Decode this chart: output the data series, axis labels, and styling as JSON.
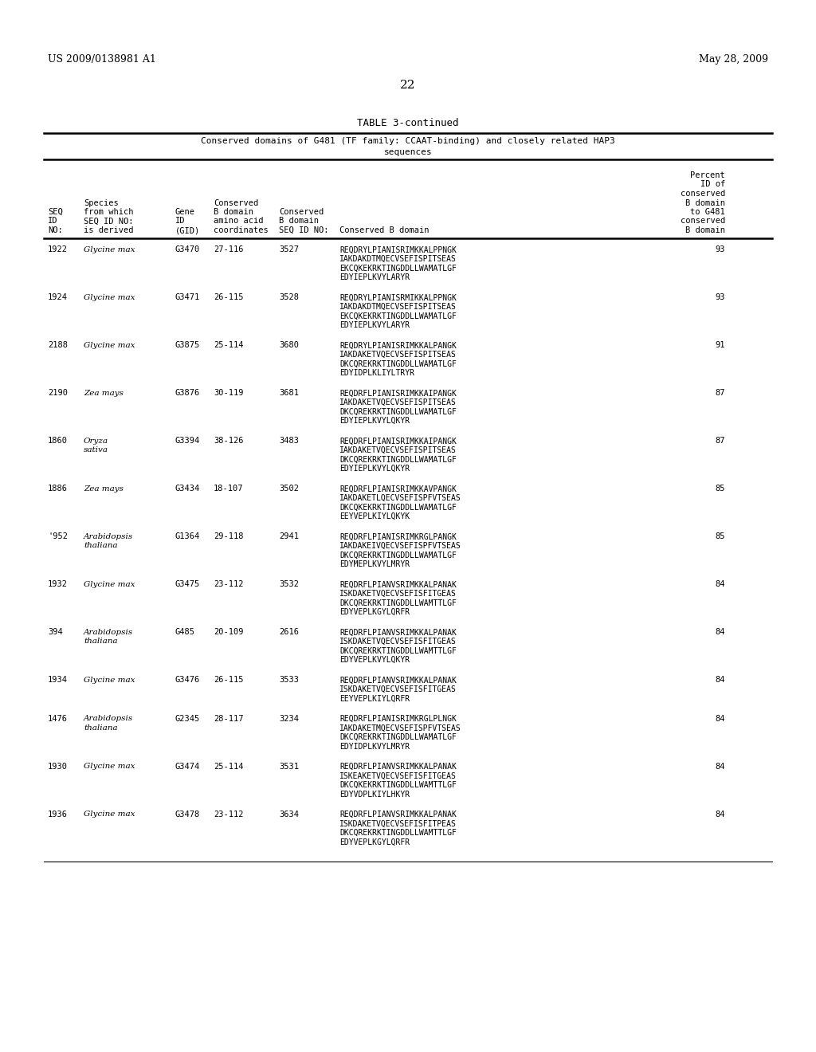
{
  "page_header_left": "US 2009/0138981 A1",
  "page_header_right": "May 28, 2009",
  "page_number": "22",
  "table_title": "TABLE 3-continued",
  "table_caption_line1": "Conserved domains of G481 (TF family: CCAAT-binding) and closely related HAP3",
  "table_caption_line2": "sequences",
  "rows": [
    {
      "seq_id": "1922",
      "species": "Glycine max",
      "gene_id": "G3470",
      "coords": "27-116",
      "conserved_seq_id": "3527",
      "b_domain_lines": [
        "REQDRYLPIANISRIMKKALPPNGK",
        "IAKDAKDTMQECVSEFISPITSEAS",
        "EKCQKEKRKTINGDDLLWAMATLGF",
        "EDYIEPLKVYLARYR"
      ],
      "percent_id": "93"
    },
    {
      "seq_id": "1924",
      "species": "Glycine max",
      "gene_id": "G3471",
      "coords": "26-115",
      "conserved_seq_id": "3528",
      "b_domain_lines": [
        "REQDRYLPIANISRMIKKALPPNGK",
        "IAKDAKDTMQECVSEFISPITSEAS",
        "EKCQKEKRKTINGDDLLWAMATLGF",
        "EDYIEPLKVYLARYR"
      ],
      "percent_id": "93"
    },
    {
      "seq_id": "2188",
      "species": "Glycine max",
      "gene_id": "G3875",
      "coords": "25-114",
      "conserved_seq_id": "3680",
      "b_domain_lines": [
        "REQDRYLPIANISRIMKKALPANGK",
        "IAKDAKETVQECVSEFISPITSEAS",
        "DKCQREKRKTINGDDLLWAMATLGF",
        "EDYIDPLKLIYLTRYR"
      ],
      "percent_id": "91"
    },
    {
      "seq_id": "2190",
      "species_line1": "Zea mays",
      "species_line2": "",
      "gene_id": "G3876",
      "coords": "30-119",
      "conserved_seq_id": "3681",
      "b_domain_lines": [
        "REQDRFLPIANISRIMKKAIPANGK",
        "IAKDAKETVQECVSEFISPITSEAS",
        "DKCQREKRKTINGDDLLWAMATLGF",
        "EDYIEPLKVYLQKYR"
      ],
      "percent_id": "87"
    },
    {
      "seq_id": "1860",
      "species_line1": "Oryza",
      "species_line2": "sativa",
      "gene_id": "G3394",
      "coords": "38-126",
      "conserved_seq_id": "3483",
      "b_domain_lines": [
        "REQDRFLPIANISRIMKKAIPANGK",
        "IAKDAKETVQECVSEFISPITSEAS",
        "DKCQREKRKTINGDDLLWAMATLGF",
        "EDYIEPLKVYLQKYR"
      ],
      "percent_id": "87"
    },
    {
      "seq_id": "1886",
      "species_line1": "Zea mays",
      "species_line2": "",
      "gene_id": "G3434",
      "coords": "18-107",
      "conserved_seq_id": "3502",
      "b_domain_lines": [
        "REQDRFLPIANISRIMKKAVPANGK",
        "IAKDAKETLQECVSEFISPFVTSEAS",
        "DKCQKEKRKTINGDDLLWAMATLGF",
        "EEYVEPLKIYLQKYK"
      ],
      "percent_id": "85"
    },
    {
      "seq_id": "'952",
      "species_line1": "Arabidopsis",
      "species_line2": "thaliana",
      "gene_id": "G1364",
      "coords": "29-118",
      "conserved_seq_id": "2941",
      "b_domain_lines": [
        "REQDRFLPIANISRIMKRGLPANGK",
        "IAKDAKEIVQECVSEFISPFVTSEAS",
        "DKCQREKRKTINGDDLLWAMATLGF",
        "EDYMEPLKVYLMRYR"
      ],
      "percent_id": "85"
    },
    {
      "seq_id": "1932",
      "species_line1": "Glycine max",
      "species_line2": "",
      "gene_id": "G3475",
      "coords": "23-112",
      "conserved_seq_id": "3532",
      "b_domain_lines": [
        "REQDRFLPIANVSRIMKKALPANAK",
        "ISKDAKETVQECVSEFISFITGEAS",
        "DKCQREKRKTINGDDLLWAMTTLGF",
        "EDYVEPLKGYLQRFR"
      ],
      "percent_id": "84"
    },
    {
      "seq_id": "394",
      "species_line1": "Arabidopsis",
      "species_line2": "thaliana",
      "gene_id": "G485",
      "coords": "20-109",
      "conserved_seq_id": "2616",
      "b_domain_lines": [
        "REQDRFLPIANVSRIMKKALPANAK",
        "ISKDAKETVQECVSEFISFITGEAS",
        "DKCQREKRKTINGDDLLWAMTTLGF",
        "EDYVEPLKVYLQKYR"
      ],
      "percent_id": "84"
    },
    {
      "seq_id": "1934",
      "species_line1": "Glycine max",
      "species_line2": "",
      "gene_id": "G3476",
      "coords": "26-115",
      "conserved_seq_id": "3533",
      "b_domain_lines": [
        "REQDRFLPIANVSRIMKKALPANAK",
        "ISKDAKETVQECVSEFISFITGEAS",
        "EEYVEPLKIYLQRFR"
      ],
      "percent_id": "84"
    },
    {
      "seq_id": "1476",
      "species_line1": "Arabidopsis",
      "species_line2": "thaliana",
      "gene_id": "G2345",
      "coords": "28-117",
      "conserved_seq_id": "3234",
      "b_domain_lines": [
        "REQDRFLPIANISRIMKRGLPLNGK",
        "IAKDAKETMQECVSEFISPFVTSEAS",
        "DKCQREKRKTINGDDLLWAMATLGF",
        "EDYIDPLKVYLMRYR"
      ],
      "percent_id": "84"
    },
    {
      "seq_id": "1930",
      "species_line1": "Glycine max",
      "species_line2": "",
      "gene_id": "G3474",
      "coords": "25-114",
      "conserved_seq_id": "3531",
      "b_domain_lines": [
        "REQDRFLPIANVSRIMKKALPANAK",
        "ISKEAKETVQECVSEFISFITGEAS",
        "DKCQKEKRKTINGDDLLWAMTTLGF",
        "EDYVDPLKIYLHKYR"
      ],
      "percent_id": "84"
    },
    {
      "seq_id": "1936",
      "species_line1": "Glycine max",
      "species_line2": "",
      "gene_id": "G3478",
      "coords": "23-112",
      "conserved_seq_id": "3634",
      "b_domain_lines": [
        "REQDRFLPIANVSRIMKKALPANAK",
        "ISKDAKETVQECVSEFISFITPEAS",
        "DKCQREKRKTINGDDLLWAMTTLGF",
        "EDYVEPLKGYLQRFR"
      ],
      "percent_id": "84"
    }
  ]
}
